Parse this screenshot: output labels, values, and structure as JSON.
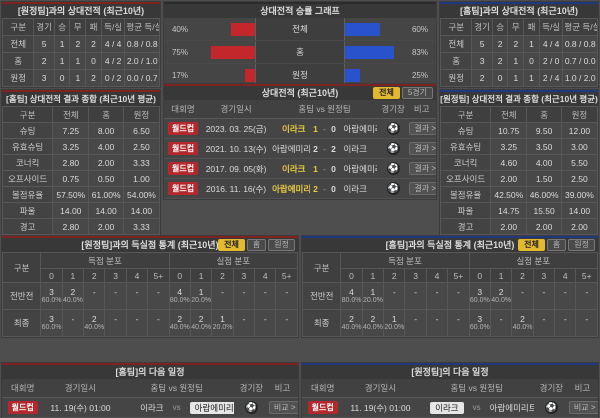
{
  "icons": {
    "venue": "⚽"
  },
  "colors": {
    "accent_red": "#b3282d",
    "accent_blue": "#22387e",
    "bar_red": "#c3272b",
    "bar_blue": "#2953cc",
    "highlight_yellow": "#e8c945",
    "button_yellow": "#e3b92f"
  },
  "panels": {
    "h2h_away": {
      "title": "[원정팀]과의 상대전적 (최근10년)",
      "headers": [
        "구분",
        "경기",
        "승",
        "무",
        "패",
        "득/실",
        "평균 득/실"
      ],
      "rows": [
        [
          "전체",
          "5",
          "1",
          "2",
          "2",
          "4 / 4",
          "0.8 / 0.8"
        ],
        [
          "홈",
          "2",
          "1",
          "1",
          "0",
          "4 / 2",
          "2.0 / 1.0"
        ],
        [
          "원정",
          "3",
          "0",
          "1",
          "2",
          "0 / 2",
          "0.0 / 0.7"
        ]
      ]
    },
    "winrate": {
      "title": "상대전적 승률 그래프",
      "chart_data": {
        "type": "bar",
        "categories": [
          "전체",
          "홈",
          "원정"
        ],
        "series": [
          {
            "name": "left-red",
            "values": [
              40,
              75,
              17
            ]
          },
          {
            "name": "right-blue",
            "values": [
              60,
              83,
              25
            ]
          }
        ]
      },
      "rows": [
        {
          "label": "전체",
          "lv": "40%",
          "lw": 40,
          "rv": "60%",
          "rw": 60
        },
        {
          "label": "홈",
          "lv": "75%",
          "lw": 75,
          "rv": "83%",
          "rw": 83
        },
        {
          "label": "원정",
          "lv": "17%",
          "lw": 17,
          "rv": "25%",
          "rw": 25
        }
      ]
    },
    "h2h_home": {
      "title": "[홈팀]과의 상대전적 (최근10년)",
      "headers": [
        "구분",
        "경기",
        "승",
        "무",
        "패",
        "득/실",
        "평균 득/실"
      ],
      "rows": [
        [
          "전체",
          "5",
          "2",
          "2",
          "1",
          "4 / 4",
          "0.8 / 0.8"
        ],
        [
          "홈",
          "3",
          "2",
          "1",
          "0",
          "2 / 0",
          "0.7 / 0.0"
        ],
        [
          "원정",
          "2",
          "0",
          "1",
          "1",
          "2 / 4",
          "1.0 / 2.0"
        ]
      ]
    },
    "sum_home": {
      "title": "[홈팀] 상대전적 결과 종합 (최근10년 평균)",
      "headers": [
        "구분",
        "전체",
        "홈",
        "원정"
      ],
      "rows": [
        [
          "슈팅",
          "7.25",
          "8.00",
          "6.50"
        ],
        [
          "유효슈팅",
          "3.25",
          "4.00",
          "2.50"
        ],
        [
          "코너킥",
          "2.80",
          "2.00",
          "3.33"
        ],
        [
          "오프사이드",
          "0.75",
          "0.50",
          "1.00"
        ],
        [
          "볼점유율",
          "57.50%",
          "61.00%",
          "54.00%"
        ],
        [
          "파울",
          "14.00",
          "14.00",
          "14.00"
        ],
        [
          "경고",
          "2.80",
          "2.00",
          "3.33"
        ],
        [
          "퇴장",
          "-",
          "-",
          "-"
        ]
      ]
    },
    "matches": {
      "title": "상대전적 (최근10년)",
      "buttons": [
        "전체",
        "5경기"
      ],
      "headers": [
        "대회명",
        "경기일시",
        "홈팀 vs 원정팀",
        "경기장",
        "비고"
      ],
      "score_sep": "-",
      "rows": [
        {
          "league": "월드컵",
          "date": "2023. 03. 25(금)",
          "home": "이라크",
          "hs": "1",
          "as": "0",
          "away": "아랍에미리트",
          "note": "결과 >"
        },
        {
          "league": "월드컵",
          "date": "2021. 10. 13(수)",
          "home": "아랍에미리트",
          "hs": "2",
          "as": "2",
          "away": "이라크",
          "note": "결과 >"
        },
        {
          "league": "월드컵",
          "date": "2017. 09. 05(화)",
          "home": "이라크",
          "hs": "1",
          "as": "0",
          "away": "아랍에미리트",
          "note": "결과 >"
        },
        {
          "league": "월드컵",
          "date": "2016. 11. 16(수)",
          "home": "아랍에미리트",
          "hs": "2",
          "as": "0",
          "away": "이라크",
          "note": "결과 >"
        }
      ]
    },
    "sum_away": {
      "title": "[원정팀] 상대전적 결과 종합 (최근10년 평균)",
      "headers": [
        "구분",
        "전체",
        "홈",
        "원정"
      ],
      "rows": [
        [
          "슈팅",
          "10.75",
          "9.50",
          "12.00"
        ],
        [
          "유효슈팅",
          "3.25",
          "3.50",
          "3.00"
        ],
        [
          "코너킥",
          "4.60",
          "4.00",
          "5.50"
        ],
        [
          "오프사이드",
          "2.00",
          "1.50",
          "2.50"
        ],
        [
          "볼점유율",
          "42.50%",
          "46.00%",
          "39.00%"
        ],
        [
          "파울",
          "14.75",
          "15.50",
          "14.00"
        ],
        [
          "경고",
          "2.00",
          "2.00",
          "2.00"
        ],
        [
          "퇴장",
          "-",
          "-",
          "-"
        ]
      ]
    },
    "goals_vs_away": {
      "title": "[원정팀]과의 득실점 통계 (최근10년)",
      "buttons": [
        "전체",
        "홈",
        "원정"
      ],
      "col_label": "구분",
      "group1": "득점 분포",
      "group2": "실점 분포",
      "cols": [
        "0",
        "1",
        "2",
        "3",
        "4",
        "5+"
      ],
      "rows": [
        {
          "label": "전반전",
          "c": [
            {
              "n": "3",
              "p": "60.0%"
            },
            {
              "n": "2",
              "p": "40.0%"
            },
            {
              "n": "-",
              "p": ""
            },
            {
              "n": "-",
              "p": ""
            },
            {
              "n": "-",
              "p": ""
            },
            {
              "n": "-",
              "p": ""
            },
            {
              "n": "4",
              "p": "80.0%"
            },
            {
              "n": "1",
              "p": "20.0%"
            },
            {
              "n": "-",
              "p": ""
            },
            {
              "n": "-",
              "p": ""
            },
            {
              "n": "-",
              "p": ""
            },
            {
              "n": "-",
              "p": ""
            }
          ]
        },
        {
          "label": "최종",
          "c": [
            {
              "n": "3",
              "p": "60.0%"
            },
            {
              "n": "-",
              "p": ""
            },
            {
              "n": "2",
              "p": "40.0%"
            },
            {
              "n": "-",
              "p": ""
            },
            {
              "n": "-",
              "p": ""
            },
            {
              "n": "-",
              "p": ""
            },
            {
              "n": "2",
              "p": "40.0%"
            },
            {
              "n": "2",
              "p": "40.0%"
            },
            {
              "n": "1",
              "p": "20.0%"
            },
            {
              "n": "-",
              "p": ""
            },
            {
              "n": "-",
              "p": ""
            },
            {
              "n": "-",
              "p": ""
            }
          ]
        }
      ]
    },
    "goals_vs_home": {
      "title": "[홈팀]과의 득실점 통계 (최근10년)",
      "buttons": [
        "전체",
        "홈",
        "원정"
      ],
      "col_label": "구분",
      "group1": "득점 분포",
      "group2": "실점 분포",
      "cols": [
        "0",
        "1",
        "2",
        "3",
        "4",
        "5+"
      ],
      "rows": [
        {
          "label": "전반전",
          "c": [
            {
              "n": "4",
              "p": "80.0%"
            },
            {
              "n": "1",
              "p": "20.0%"
            },
            {
              "n": "-",
              "p": ""
            },
            {
              "n": "-",
              "p": ""
            },
            {
              "n": "-",
              "p": ""
            },
            {
              "n": "-",
              "p": ""
            },
            {
              "n": "3",
              "p": "60.0%"
            },
            {
              "n": "2",
              "p": "40.0%"
            },
            {
              "n": "-",
              "p": ""
            },
            {
              "n": "-",
              "p": ""
            },
            {
              "n": "-",
              "p": ""
            },
            {
              "n": "-",
              "p": ""
            }
          ]
        },
        {
          "label": "최종",
          "c": [
            {
              "n": "2",
              "p": "40.0%"
            },
            {
              "n": "2",
              "p": "40.0%"
            },
            {
              "n": "1",
              "p": "20.0%"
            },
            {
              "n": "-",
              "p": ""
            },
            {
              "n": "-",
              "p": ""
            },
            {
              "n": "-",
              "p": ""
            },
            {
              "n": "3",
              "p": "60.0%"
            },
            {
              "n": "-",
              "p": ""
            },
            {
              "n": "2",
              "p": "40.0%"
            },
            {
              "n": "-",
              "p": ""
            },
            {
              "n": "-",
              "p": ""
            },
            {
              "n": "-",
              "p": ""
            }
          ]
        }
      ]
    },
    "next_home": {
      "title": "[홈팀]의 다음 일정",
      "headers": [
        "대회명",
        "경기일시",
        "홈팀 vs 원정팀",
        "경기장",
        "비고"
      ],
      "row": {
        "league": "월드컵",
        "date": "11. 19(수) 01:00",
        "home": "이라크",
        "vs": "vs",
        "away": "아랍에미리트",
        "note": "비교 >"
      }
    },
    "next_away": {
      "title": "[원정팀]의 다음 일정",
      "headers": [
        "대회명",
        "경기일시",
        "홈팀 vs 원정팀",
        "경기장",
        "비고"
      ],
      "row": {
        "league": "월드컵",
        "date": "11. 19(수) 01:00",
        "home": "이라크",
        "vs": "vs",
        "away": "아랍에미리트",
        "note": "비교 >"
      }
    }
  }
}
